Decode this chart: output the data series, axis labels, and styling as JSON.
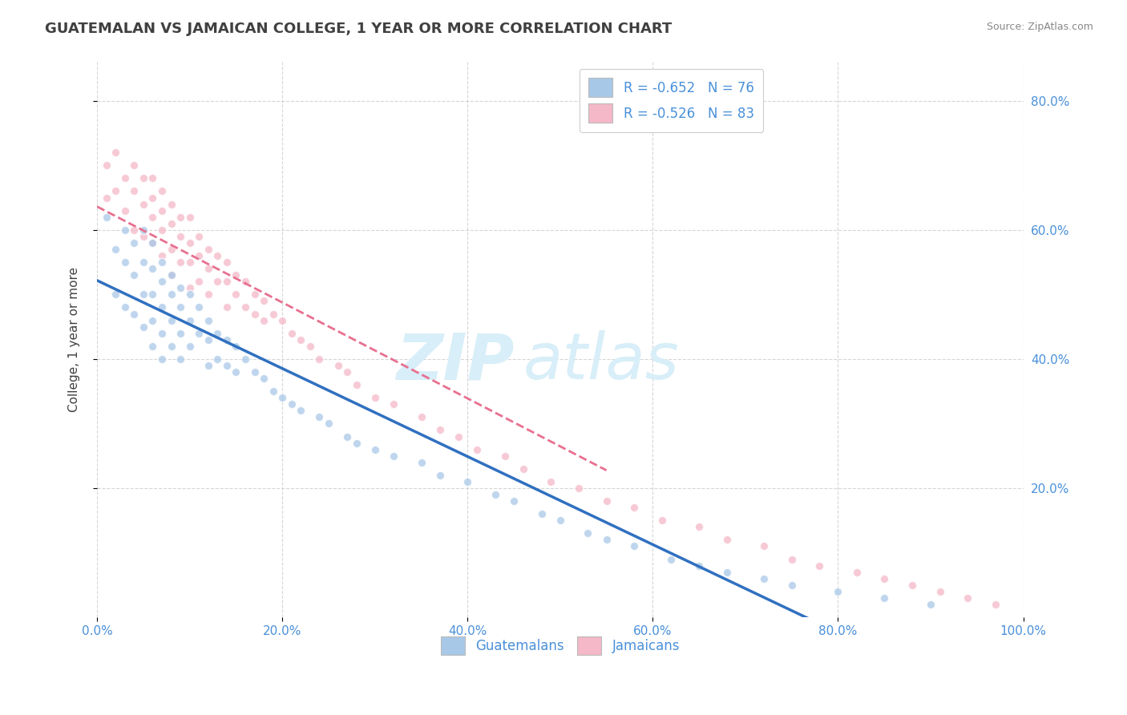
{
  "title": "GUATEMALAN VS JAMAICAN COLLEGE, 1 YEAR OR MORE CORRELATION CHART",
  "source": "Source: ZipAtlas.com",
  "ylabel": "College, 1 year or more",
  "legend_label1": "Guatemalans",
  "legend_label2": "Jamaicans",
  "R1": -0.652,
  "N1": 76,
  "R2": -0.526,
  "N2": 83,
  "color1": "#a8c8e8",
  "color2": "#f4b8c8",
  "line_color1": "#3070c0",
  "line_color2": "#e87090",
  "watermark_zip": "ZIP",
  "watermark_atlas": "atlas",
  "xlim": [
    0.0,
    1.0
  ],
  "ylim": [
    0.0,
    0.86
  ],
  "x_ticks": [
    0.0,
    0.2,
    0.4,
    0.6,
    0.8,
    1.0
  ],
  "x_tick_labels": [
    "0.0%",
    "20.0%",
    "40.0%",
    "60.0%",
    "80.0%",
    "100.0%"
  ],
  "y_ticks": [
    0.2,
    0.4,
    0.6,
    0.8
  ],
  "y_tick_labels": [
    "20.0%",
    "40.0%",
    "60.0%",
    "80.0%"
  ],
  "guatemalan_x": [
    0.01,
    0.02,
    0.02,
    0.03,
    0.03,
    0.03,
    0.04,
    0.04,
    0.04,
    0.05,
    0.05,
    0.05,
    0.05,
    0.06,
    0.06,
    0.06,
    0.06,
    0.06,
    0.07,
    0.07,
    0.07,
    0.07,
    0.07,
    0.08,
    0.08,
    0.08,
    0.08,
    0.09,
    0.09,
    0.09,
    0.09,
    0.1,
    0.1,
    0.1,
    0.11,
    0.11,
    0.12,
    0.12,
    0.12,
    0.13,
    0.13,
    0.14,
    0.14,
    0.15,
    0.15,
    0.16,
    0.17,
    0.18,
    0.19,
    0.2,
    0.21,
    0.22,
    0.24,
    0.25,
    0.27,
    0.28,
    0.3,
    0.32,
    0.35,
    0.37,
    0.4,
    0.43,
    0.45,
    0.48,
    0.5,
    0.53,
    0.55,
    0.58,
    0.62,
    0.65,
    0.68,
    0.72,
    0.75,
    0.8,
    0.85,
    0.9
  ],
  "guatemalan_y": [
    0.62,
    0.57,
    0.5,
    0.6,
    0.55,
    0.48,
    0.58,
    0.53,
    0.47,
    0.6,
    0.55,
    0.5,
    0.45,
    0.58,
    0.54,
    0.5,
    0.46,
    0.42,
    0.55,
    0.52,
    0.48,
    0.44,
    0.4,
    0.53,
    0.5,
    0.46,
    0.42,
    0.51,
    0.48,
    0.44,
    0.4,
    0.5,
    0.46,
    0.42,
    0.48,
    0.44,
    0.46,
    0.43,
    0.39,
    0.44,
    0.4,
    0.43,
    0.39,
    0.42,
    0.38,
    0.4,
    0.38,
    0.37,
    0.35,
    0.34,
    0.33,
    0.32,
    0.31,
    0.3,
    0.28,
    0.27,
    0.26,
    0.25,
    0.24,
    0.22,
    0.21,
    0.19,
    0.18,
    0.16,
    0.15,
    0.13,
    0.12,
    0.11,
    0.09,
    0.08,
    0.07,
    0.06,
    0.05,
    0.04,
    0.03,
    0.02
  ],
  "jamaican_x": [
    0.01,
    0.01,
    0.02,
    0.02,
    0.03,
    0.03,
    0.04,
    0.04,
    0.04,
    0.05,
    0.05,
    0.05,
    0.06,
    0.06,
    0.06,
    0.06,
    0.07,
    0.07,
    0.07,
    0.07,
    0.08,
    0.08,
    0.08,
    0.08,
    0.09,
    0.09,
    0.09,
    0.1,
    0.1,
    0.1,
    0.1,
    0.11,
    0.11,
    0.11,
    0.12,
    0.12,
    0.12,
    0.13,
    0.13,
    0.14,
    0.14,
    0.14,
    0.15,
    0.15,
    0.16,
    0.16,
    0.17,
    0.17,
    0.18,
    0.18,
    0.19,
    0.2,
    0.21,
    0.22,
    0.23,
    0.24,
    0.26,
    0.27,
    0.28,
    0.3,
    0.32,
    0.35,
    0.37,
    0.39,
    0.41,
    0.44,
    0.46,
    0.49,
    0.52,
    0.55,
    0.58,
    0.61,
    0.65,
    0.68,
    0.72,
    0.75,
    0.78,
    0.82,
    0.85,
    0.88,
    0.91,
    0.94,
    0.97
  ],
  "jamaican_y": [
    0.7,
    0.65,
    0.72,
    0.66,
    0.68,
    0.63,
    0.7,
    0.66,
    0.6,
    0.68,
    0.64,
    0.59,
    0.68,
    0.65,
    0.62,
    0.58,
    0.66,
    0.63,
    0.6,
    0.56,
    0.64,
    0.61,
    0.57,
    0.53,
    0.62,
    0.59,
    0.55,
    0.62,
    0.58,
    0.55,
    0.51,
    0.59,
    0.56,
    0.52,
    0.57,
    0.54,
    0.5,
    0.56,
    0.52,
    0.55,
    0.52,
    0.48,
    0.53,
    0.5,
    0.52,
    0.48,
    0.5,
    0.47,
    0.49,
    0.46,
    0.47,
    0.46,
    0.44,
    0.43,
    0.42,
    0.4,
    0.39,
    0.38,
    0.36,
    0.34,
    0.33,
    0.31,
    0.29,
    0.28,
    0.26,
    0.25,
    0.23,
    0.21,
    0.2,
    0.18,
    0.17,
    0.15,
    0.14,
    0.12,
    0.11,
    0.09,
    0.08,
    0.07,
    0.06,
    0.05,
    0.04,
    0.03,
    0.02
  ],
  "background_color": "#ffffff",
  "grid_color": "#cccccc",
  "title_color": "#404040",
  "axis_label_color": "#4a90d9",
  "watermark_color": "#d8eef8",
  "title_fontsize": 13,
  "axis_tick_fontsize": 11,
  "scatter_size": 55,
  "scatter_alpha": 0.75,
  "scatter_edgewidth": 1.0
}
